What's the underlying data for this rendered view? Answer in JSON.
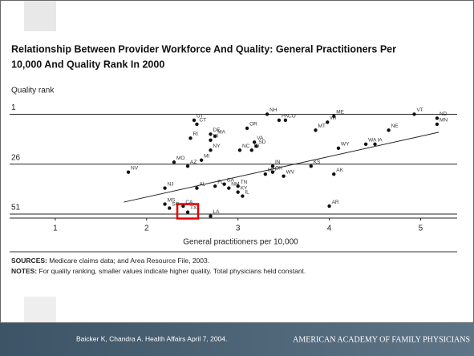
{
  "chart_data": {
    "type": "scatter",
    "title": [
      "Relationship Between Provider Workforce And Quality: General Practitioners Per",
      "10,000 And Quality Rank In 2000"
    ],
    "y_label": "Quality rank",
    "x_label": "General practitioners per 10,000",
    "labels": [
      "UT",
      "NH",
      "ME",
      "VT",
      "ND",
      "MN",
      "PA",
      "CO",
      "WI",
      "MT",
      "CT",
      "OR",
      "RI",
      "DE",
      "MA",
      "HI",
      "NE",
      "VA",
      "NC",
      "ID",
      "SD",
      "NY",
      "WY",
      "WA",
      "IA",
      "MO",
      "AZ",
      "MI",
      "NV",
      "IN",
      "KS",
      "MD",
      "OK",
      "WV",
      "AK",
      "NJ",
      "FL",
      "AL",
      "GA",
      "TN",
      "KY",
      "IL",
      "NM",
      "AR",
      "LA",
      "MS",
      "SC",
      "CA",
      "TX"
    ],
    "x": [
      2.52,
      3.32,
      4.05,
      4.93,
      5.18,
      5.18,
      3.45,
      3.52,
      3.98,
      3.85,
      2.55,
      3.1,
      2.48,
      2.7,
      2.75,
      2.7,
      4.65,
      3.18,
      3.02,
      3.15,
      3.2,
      2.7,
      4.1,
      4.4,
      4.5,
      2.3,
      2.45,
      2.6,
      1.8,
      3.38,
      3.8,
      3.3,
      3.38,
      3.5,
      4.05,
      2.2,
      2.75,
      2.55,
      2.85,
      3.0,
      3.0,
      3.05,
      2.9,
      4.0,
      2.7,
      2.2,
      2.25,
      2.4,
      2.45
    ],
    "values": [
      4,
      1,
      2,
      1,
      3,
      6,
      4,
      4,
      5,
      9,
      6,
      8,
      13,
      11,
      12,
      14,
      9,
      15,
      19,
      19,
      17,
      19,
      18,
      16,
      16,
      25,
      27,
      24,
      30,
      27,
      27,
      31,
      30,
      32,
      31,
      38,
      37,
      38,
      36,
      37,
      40,
      42,
      38,
      47,
      52,
      46,
      48,
      47,
      50
    ],
    "trendline": {
      "x": [
        1.75,
        5.2
      ],
      "y": [
        45,
        10
      ]
    },
    "color": "#111111",
    "xlim": [
      0.5,
      5.4
    ],
    "ylim": [
      53,
      -4
    ],
    "xticks": [
      1,
      2,
      3,
      4,
      5
    ],
    "yticks": [
      1,
      26,
      51
    ],
    "grid": true,
    "sources_label": "SOURCES:",
    "sources": "Medicare claims data; and Area Resource File, 2003.",
    "notes_label": "NOTES:",
    "notes": "For quality ranking, smaller values indicate higher quality. Total physicians held constant.",
    "citation": "Baicker K, Chandra A. Health Affairs April 7, 2004.",
    "organization": "AMERICAN ACADEMY OF FAMILY PHYSICIANS"
  }
}
